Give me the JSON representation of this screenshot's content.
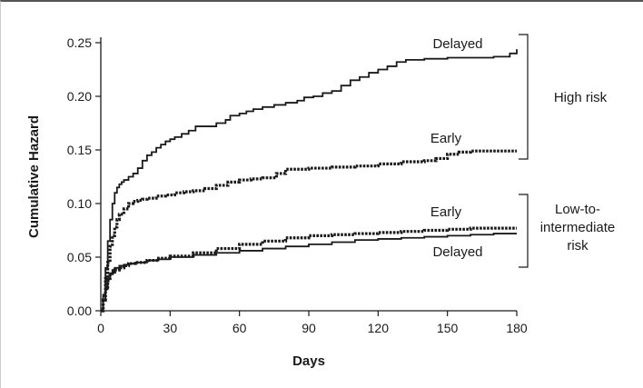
{
  "chart_data": {
    "type": "line",
    "xlabel": "Days",
    "ylabel": "Cumulative Hazard",
    "xlim": [
      0,
      180
    ],
    "ylim": [
      0,
      0.25
    ],
    "x_ticks": [
      0,
      30,
      60,
      90,
      120,
      150,
      180
    ],
    "x_tick_labels": [
      "0",
      "30",
      "60",
      "90",
      "120",
      "150",
      "180"
    ],
    "y_ticks": [
      0,
      0.05,
      0.1,
      0.15,
      0.2,
      0.25
    ],
    "y_tick_labels": [
      "0.00",
      "0.05",
      "0.10",
      "0.15",
      "0.20",
      "0.25"
    ],
    "grid": false,
    "legend": "none",
    "series": [
      {
        "name": "Delayed",
        "group": "High risk",
        "style": "solid",
        "x": [
          0,
          1,
          2,
          3,
          4,
          5,
          6,
          7,
          8,
          9,
          10,
          12,
          14,
          16,
          18,
          20,
          22,
          24,
          26,
          28,
          30,
          32,
          35,
          38,
          41,
          45,
          48,
          50,
          54,
          56,
          60,
          63,
          66,
          70,
          75,
          80,
          85,
          88,
          92,
          96,
          100,
          104,
          108,
          112,
          116,
          120,
          124,
          128,
          132,
          140,
          150,
          160,
          170,
          177,
          180
        ],
        "y": [
          0.0,
          0.015,
          0.04,
          0.065,
          0.085,
          0.1,
          0.11,
          0.115,
          0.118,
          0.12,
          0.122,
          0.125,
          0.128,
          0.133,
          0.14,
          0.145,
          0.148,
          0.152,
          0.155,
          0.158,
          0.16,
          0.162,
          0.165,
          0.168,
          0.172,
          0.172,
          0.172,
          0.175,
          0.178,
          0.182,
          0.184,
          0.186,
          0.188,
          0.19,
          0.192,
          0.194,
          0.196,
          0.199,
          0.2,
          0.203,
          0.205,
          0.21,
          0.215,
          0.218,
          0.222,
          0.225,
          0.228,
          0.232,
          0.234,
          0.235,
          0.236,
          0.236,
          0.237,
          0.24,
          0.244
        ]
      },
      {
        "name": "Early",
        "group": "High risk",
        "style": "dotted",
        "x": [
          0,
          1,
          2,
          3,
          4,
          5,
          6,
          7,
          8,
          10,
          12,
          14,
          16,
          18,
          20,
          24,
          28,
          32,
          36,
          40,
          45,
          50,
          55,
          60,
          65,
          70,
          75,
          76,
          80,
          90,
          100,
          110,
          120,
          130,
          140,
          145,
          150,
          155,
          160,
          170,
          180
        ],
        "y": [
          0.0,
          0.01,
          0.03,
          0.045,
          0.06,
          0.07,
          0.078,
          0.085,
          0.09,
          0.095,
          0.1,
          0.102,
          0.103,
          0.104,
          0.105,
          0.107,
          0.108,
          0.11,
          0.111,
          0.112,
          0.114,
          0.117,
          0.12,
          0.122,
          0.123,
          0.124,
          0.124,
          0.128,
          0.132,
          0.133,
          0.134,
          0.135,
          0.137,
          0.139,
          0.14,
          0.142,
          0.146,
          0.148,
          0.149,
          0.149,
          0.149
        ]
      },
      {
        "name": "Early",
        "group": "Low-to-intermediate risk",
        "style": "dotted",
        "x": [
          0,
          1,
          2,
          3,
          4,
          5,
          6,
          8,
          10,
          12,
          15,
          20,
          25,
          30,
          40,
          50,
          60,
          70,
          80,
          90,
          100,
          110,
          120,
          130,
          140,
          150,
          160,
          170,
          180
        ],
        "y": [
          0.0,
          0.01,
          0.02,
          0.028,
          0.033,
          0.036,
          0.038,
          0.04,
          0.042,
          0.044,
          0.045,
          0.047,
          0.049,
          0.051,
          0.054,
          0.058,
          0.062,
          0.065,
          0.068,
          0.07,
          0.071,
          0.072,
          0.073,
          0.074,
          0.075,
          0.076,
          0.077,
          0.077,
          0.077
        ]
      },
      {
        "name": "Delayed",
        "group": "Low-to-intermediate risk",
        "style": "solid",
        "x": [
          0,
          1,
          2,
          3,
          4,
          5,
          6,
          8,
          10,
          12,
          15,
          20,
          25,
          30,
          40,
          50,
          60,
          70,
          80,
          90,
          100,
          110,
          120,
          130,
          140,
          150,
          160,
          170,
          180
        ],
        "y": [
          0.0,
          0.01,
          0.02,
          0.03,
          0.035,
          0.038,
          0.04,
          0.042,
          0.043,
          0.044,
          0.045,
          0.047,
          0.048,
          0.05,
          0.052,
          0.054,
          0.056,
          0.058,
          0.06,
          0.062,
          0.064,
          0.066,
          0.067,
          0.068,
          0.069,
          0.07,
          0.071,
          0.072,
          0.072
        ]
      }
    ],
    "groups": [
      {
        "label": "High risk"
      },
      {
        "label": "Low-to-\nintermediate\nrisk"
      }
    ]
  }
}
